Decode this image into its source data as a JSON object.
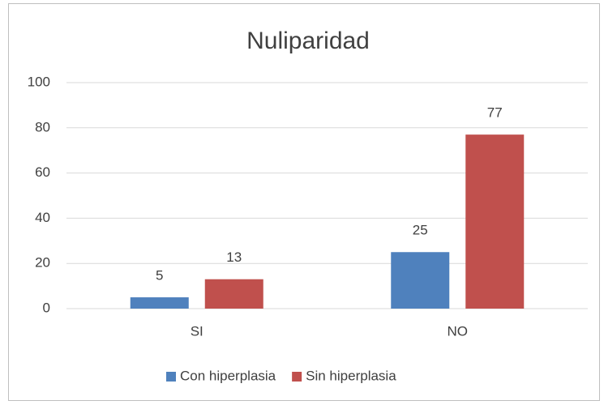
{
  "chart_data": {
    "type": "bar",
    "title": "Nuliparidad",
    "categories": [
      "SI",
      "NO"
    ],
    "series": [
      {
        "name": "Con hiperplasia",
        "color": "#4f81bd",
        "values": [
          5,
          25
        ]
      },
      {
        "name": "Sin hiperplasia",
        "color": "#c0504d",
        "values": [
          13,
          77
        ]
      }
    ],
    "ylim": [
      0,
      100
    ],
    "yticks": [
      0,
      20,
      40,
      60,
      80,
      100
    ],
    "grid": true,
    "legend": "bottom"
  }
}
